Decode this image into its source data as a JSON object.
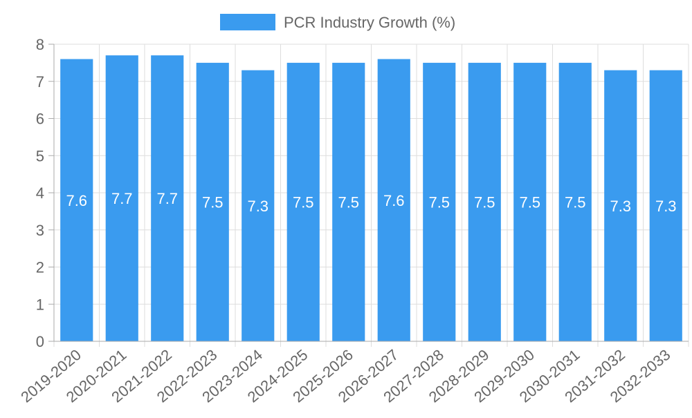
{
  "chart_data": {
    "type": "bar",
    "title": "",
    "xlabel": "",
    "ylabel": "",
    "legend": {
      "position": "top",
      "entries": [
        "PCR Industry Growth (%)"
      ]
    },
    "categories": [
      "2019-2020",
      "2020-2021",
      "2021-2022",
      "2022-2023",
      "2023-2024",
      "2024-2025",
      "2025-2026",
      "2026-2027",
      "2027-2028",
      "2028-2029",
      "2029-2030",
      "2030-2031",
      "2031-2032",
      "2032-2033"
    ],
    "series": [
      {
        "name": "PCR Industry Growth (%)",
        "values": [
          7.6,
          7.7,
          7.7,
          7.5,
          7.3,
          7.5,
          7.5,
          7.6,
          7.5,
          7.5,
          7.5,
          7.5,
          7.3,
          7.3
        ],
        "color": "#3a9bef"
      }
    ],
    "ylim": [
      0,
      8
    ],
    "yticks": [
      0,
      1,
      2,
      3,
      4,
      5,
      6,
      7,
      8
    ],
    "grid": true,
    "data_labels": true,
    "colors": {
      "bar": "#3a9bef",
      "grid": "#dddddd",
      "axis": "#aaaaaa",
      "tick_text": "#666666",
      "label_text": "#ffffff"
    }
  }
}
